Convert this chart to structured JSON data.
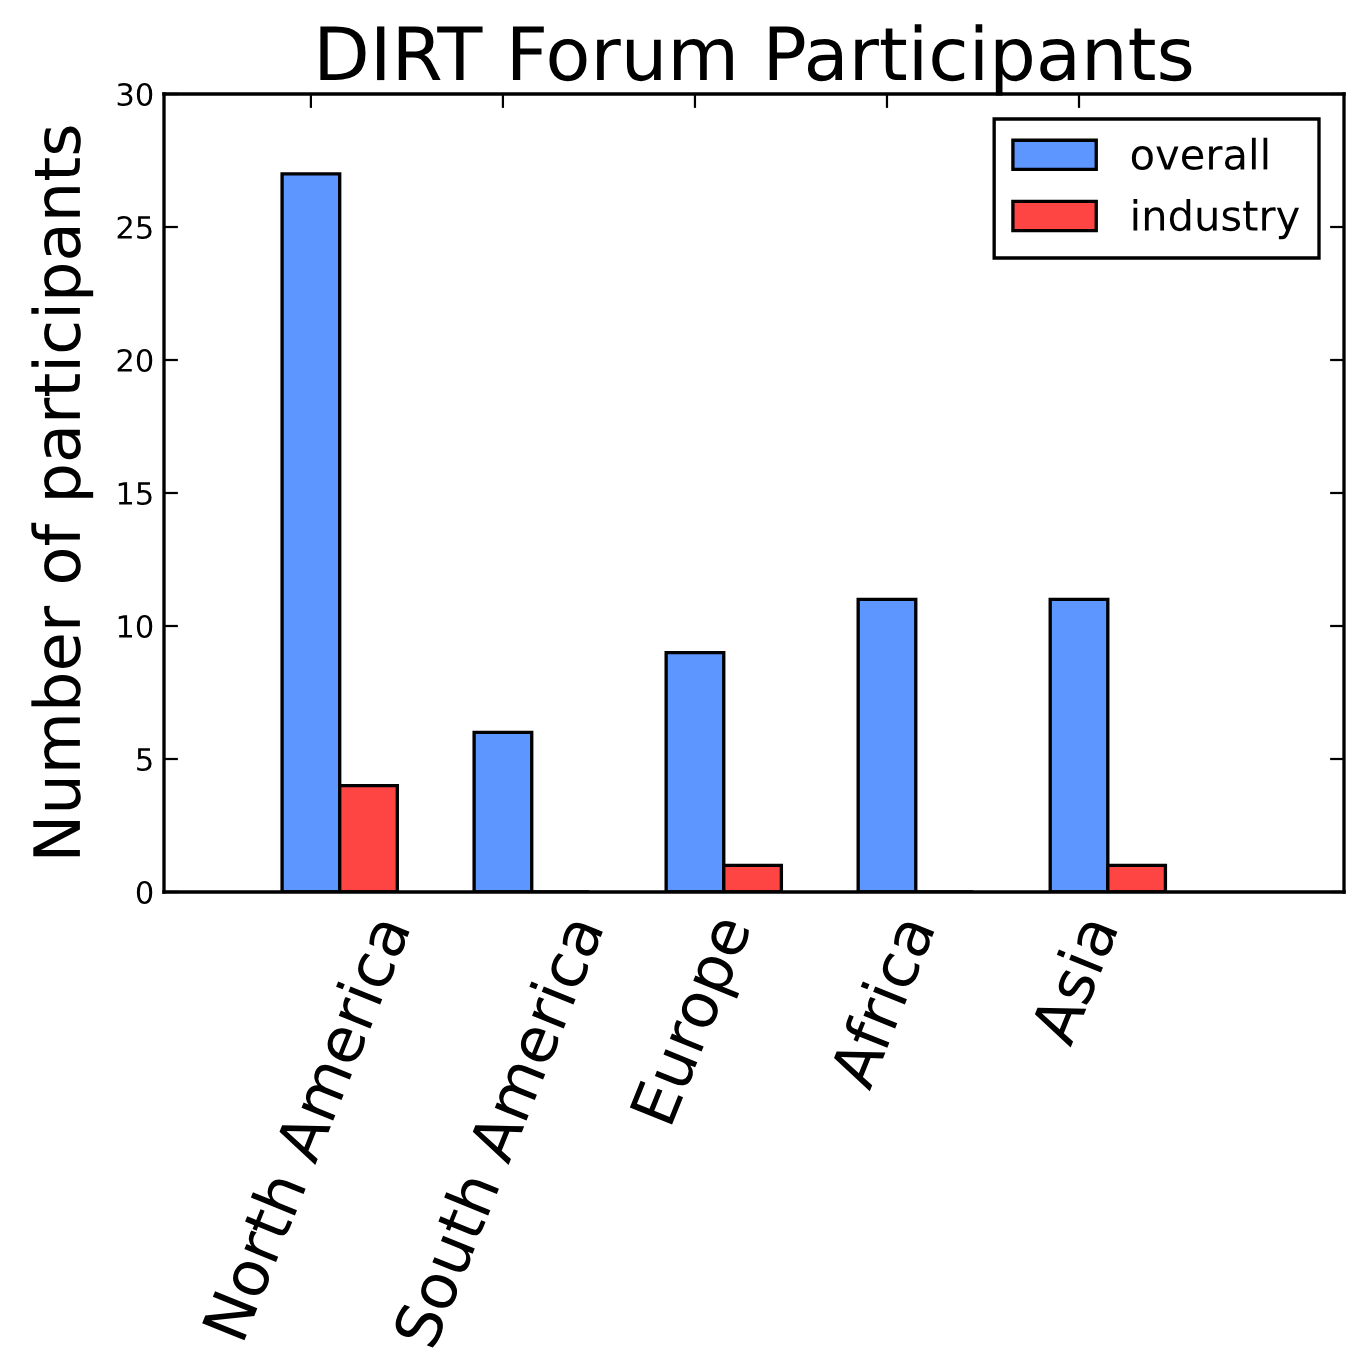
{
  "chart_data": {
    "type": "bar",
    "title": "DIRT Forum Participants",
    "ylabel": "Number of participants",
    "categories": [
      "North America",
      "South America",
      "Europe",
      "Africa",
      "Asia"
    ],
    "series": [
      {
        "name": "overall",
        "color": "#5e96ff",
        "values": [
          27,
          6,
          9,
          11,
          11
        ]
      },
      {
        "name": "industry",
        "color": "#ff4444",
        "values": [
          4,
          0,
          1,
          0,
          1
        ]
      }
    ],
    "ylim": [
      0,
      30
    ],
    "yticks": [
      0,
      5,
      10,
      15,
      20,
      25,
      30
    ],
    "legend": "top right",
    "grid": false
  }
}
